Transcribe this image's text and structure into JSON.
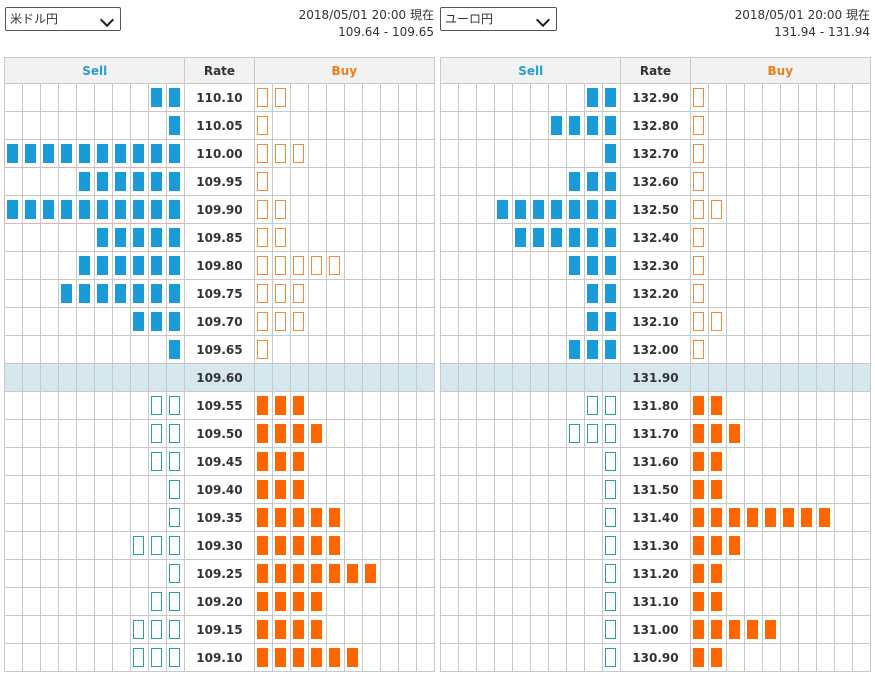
{
  "panels": [
    {
      "currency": "米ドル円",
      "datetime": "2018/05/01 20:00 現在",
      "quote": "109.64 - 109.65",
      "headers": {
        "sell": "Sell",
        "rate": "Rate",
        "buy": "Buy"
      },
      "current_rate": "109.60",
      "rows": [
        {
          "rate": "110.10",
          "sell": 2,
          "buy": 2,
          "sell_filled": true,
          "buy_filled": false
        },
        {
          "rate": "110.05",
          "sell": 1,
          "buy": 1,
          "sell_filled": true,
          "buy_filled": false
        },
        {
          "rate": "110.00",
          "sell": 10,
          "buy": 3,
          "sell_filled": true,
          "buy_filled": false,
          "highlight": true
        },
        {
          "rate": "109.95",
          "sell": 6,
          "buy": 1,
          "sell_filled": true,
          "buy_filled": false
        },
        {
          "rate": "109.90",
          "sell": 10,
          "buy": 2,
          "sell_filled": true,
          "buy_filled": false,
          "highlight": true
        },
        {
          "rate": "109.85",
          "sell": 5,
          "buy": 2,
          "sell_filled": true,
          "buy_filled": false
        },
        {
          "rate": "109.80",
          "sell": 6,
          "buy": 5,
          "sell_filled": true,
          "buy_filled": false
        },
        {
          "rate": "109.75",
          "sell": 7,
          "buy": 3,
          "sell_filled": true,
          "buy_filled": false
        },
        {
          "rate": "109.70",
          "sell": 3,
          "buy": 3,
          "sell_filled": true,
          "buy_filled": false
        },
        {
          "rate": "109.65",
          "sell": 1,
          "buy": 1,
          "sell_filled": true,
          "buy_filled": false
        },
        {
          "rate": "109.60",
          "sell": 0,
          "buy": 0,
          "current": true
        },
        {
          "rate": "109.55",
          "sell": 2,
          "buy": 3,
          "sell_filled": false,
          "buy_filled": true
        },
        {
          "rate": "109.50",
          "sell": 2,
          "buy": 4,
          "sell_filled": false,
          "buy_filled": true
        },
        {
          "rate": "109.45",
          "sell": 2,
          "buy": 3,
          "sell_filled": false,
          "buy_filled": true
        },
        {
          "rate": "109.40",
          "sell": 1,
          "buy": 3,
          "sell_filled": false,
          "buy_filled": true
        },
        {
          "rate": "109.35",
          "sell": 1,
          "buy": 5,
          "sell_filled": false,
          "buy_filled": true
        },
        {
          "rate": "109.30",
          "sell": 3,
          "buy": 5,
          "sell_filled": false,
          "buy_filled": true
        },
        {
          "rate": "109.25",
          "sell": 1,
          "buy": 7,
          "sell_filled": false,
          "buy_filled": true
        },
        {
          "rate": "109.20",
          "sell": 2,
          "buy": 4,
          "sell_filled": false,
          "buy_filled": true
        },
        {
          "rate": "109.15",
          "sell": 3,
          "buy": 4,
          "sell_filled": false,
          "buy_filled": true
        },
        {
          "rate": "109.10",
          "sell": 3,
          "buy": 6,
          "sell_filled": false,
          "buy_filled": true
        }
      ]
    },
    {
      "currency": "ユーロ円",
      "datetime": "2018/05/01 20:00 現在",
      "quote": "131.94 - 131.94",
      "headers": {
        "sell": "Sell",
        "rate": "Rate",
        "buy": "Buy"
      },
      "current_rate": "131.90",
      "rows": [
        {
          "rate": "132.90",
          "sell": 2,
          "buy": 1,
          "sell_filled": true,
          "buy_filled": false
        },
        {
          "rate": "132.80",
          "sell": 4,
          "buy": 1,
          "sell_filled": true,
          "buy_filled": false
        },
        {
          "rate": "132.70",
          "sell": 1,
          "buy": 1,
          "sell_filled": true,
          "buy_filled": false
        },
        {
          "rate": "132.60",
          "sell": 3,
          "buy": 1,
          "sell_filled": true,
          "buy_filled": false
        },
        {
          "rate": "132.50",
          "sell": 7,
          "buy": 2,
          "sell_filled": true,
          "buy_filled": false
        },
        {
          "rate": "132.40",
          "sell": 6,
          "buy": 1,
          "sell_filled": true,
          "buy_filled": false
        },
        {
          "rate": "132.30",
          "sell": 3,
          "buy": 1,
          "sell_filled": true,
          "buy_filled": false
        },
        {
          "rate": "132.20",
          "sell": 2,
          "buy": 1,
          "sell_filled": true,
          "buy_filled": false
        },
        {
          "rate": "132.10",
          "sell": 2,
          "buy": 2,
          "sell_filled": true,
          "buy_filled": false
        },
        {
          "rate": "132.00",
          "sell": 3,
          "buy": 1,
          "sell_filled": true,
          "buy_filled": false
        },
        {
          "rate": "131.90",
          "sell": 0,
          "buy": 0,
          "current": true
        },
        {
          "rate": "131.80",
          "sell": 2,
          "buy": 2,
          "sell_filled": false,
          "buy_filled": true
        },
        {
          "rate": "131.70",
          "sell": 3,
          "buy": 3,
          "sell_filled": false,
          "buy_filled": true
        },
        {
          "rate": "131.60",
          "sell": 1,
          "buy": 2,
          "sell_filled": false,
          "buy_filled": true
        },
        {
          "rate": "131.50",
          "sell": 1,
          "buy": 2,
          "sell_filled": false,
          "buy_filled": true
        },
        {
          "rate": "131.40",
          "sell": 1,
          "buy": 8,
          "sell_filled": false,
          "buy_filled": true
        },
        {
          "rate": "131.30",
          "sell": 1,
          "buy": 3,
          "sell_filled": false,
          "buy_filled": true
        },
        {
          "rate": "131.20",
          "sell": 1,
          "buy": 2,
          "sell_filled": false,
          "buy_filled": true
        },
        {
          "rate": "131.10",
          "sell": 1,
          "buy": 2,
          "sell_filled": false,
          "buy_filled": true
        },
        {
          "rate": "131.00",
          "sell": 1,
          "buy": 5,
          "sell_filled": false,
          "buy_filled": true
        },
        {
          "rate": "130.90",
          "sell": 1,
          "buy": 2,
          "sell_filled": false,
          "buy_filled": true
        }
      ]
    }
  ],
  "colors": {
    "sell_filled": "#1a9ad6",
    "sell_outline": "#2aa09d",
    "buy_filled": "#ff6600",
    "buy_outline": "#f08a3c",
    "current_row": "#d6e7ee",
    "highlight_border": "#e7b0b8"
  }
}
